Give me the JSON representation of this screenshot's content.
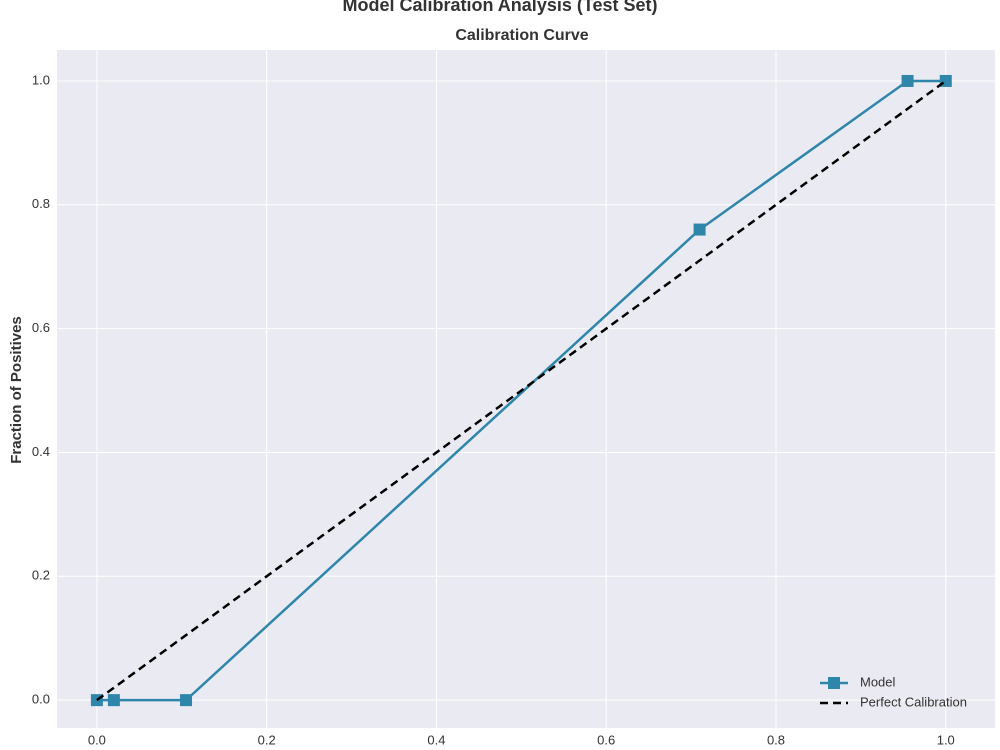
{
  "chart_data": {
    "type": "line",
    "title": "Model Calibration Analysis (Test Set)",
    "subtitle": "Calibration Curve",
    "ylabel": "Fraction of Positives",
    "xlim": [
      -0.047,
      1.058
    ],
    "ylim": [
      -0.045,
      1.05
    ],
    "xticks": [
      {
        "value": 0,
        "label": "0.0"
      },
      0.2,
      0.4,
      0.6,
      0.8,
      {
        "value": 1,
        "label": "1.0"
      }
    ],
    "yticks": [
      {
        "value": 0,
        "label": "0.0"
      },
      0.2,
      0.4,
      0.6,
      0.8,
      {
        "value": 1,
        "label": "1.0"
      }
    ],
    "grid": true,
    "legend": "lower right",
    "series": [
      {
        "name": "Model",
        "color": "#2e86ab",
        "marker": "square",
        "x": [
          0.0,
          0.02,
          0.105,
          0.71,
          0.955,
          1.0
        ],
        "values": [
          0,
          0,
          0,
          0.76,
          1,
          1
        ]
      },
      {
        "name": "Perfect Calibration",
        "color": "#000000",
        "dash": true,
        "x": [
          0,
          1
        ],
        "values": [
          0,
          1
        ]
      }
    ]
  }
}
